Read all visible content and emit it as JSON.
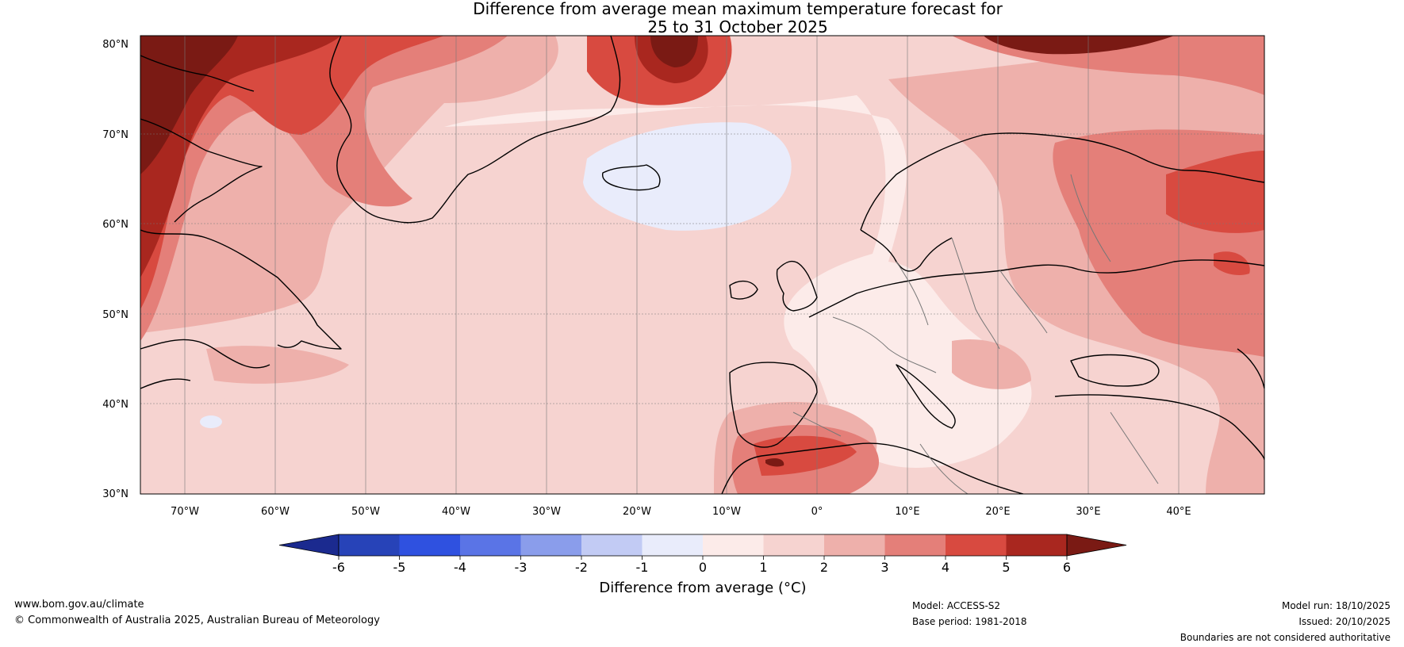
{
  "title": {
    "line1": "Difference from average mean maximum temperature forecast for",
    "line2": "25 to 31 October 2025"
  },
  "latitude_labels": [
    "80°N",
    "70°N",
    "60°N",
    "50°N",
    "40°N",
    "30°N"
  ],
  "longitude_labels": [
    "70°W",
    "60°W",
    "50°W",
    "40°W",
    "30°W",
    "20°W",
    "10°W",
    "0°",
    "10°E",
    "20°E",
    "30°E",
    "40°E"
  ],
  "colorbar": {
    "ticks": [
      "-6",
      "-5",
      "-4",
      "-3",
      "-2",
      "-1",
      "0",
      "1",
      "2",
      "3",
      "4",
      "5",
      "6"
    ],
    "label": "Difference from average (°C)",
    "colors": [
      "#1b2a8f",
      "#2743b8",
      "#2f51e0",
      "#5a74e6",
      "#8a9deb",
      "#c2cbf4",
      "#e9ecfb",
      "#fcebe9",
      "#f6d3d0",
      "#eeb0ab",
      "#e47f79",
      "#d84a40",
      "#a9271f",
      "#7a1a14"
    ]
  },
  "footer": {
    "website": "www.bom.gov.au/climate",
    "copyright": "© Commonwealth of Australia 2025, Australian Bureau of Meteorology",
    "model": "Model: ACCESS-S2",
    "base_period": "Base period: 1981-2018",
    "model_run": "Model run: 18/10/2025",
    "issued": "Issued: 20/10/2025",
    "disclaimer": "Boundaries are not considered authoritative"
  }
}
